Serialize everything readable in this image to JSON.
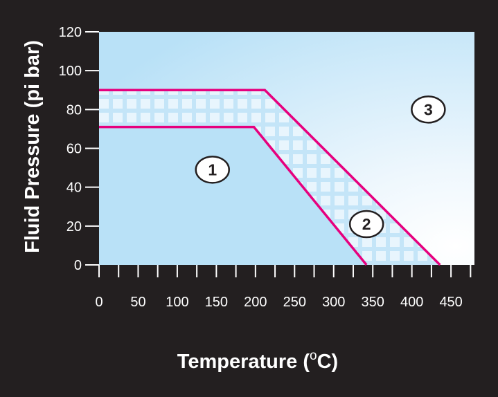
{
  "chart_data": {
    "type": "area",
    "title": "",
    "xlabel_main": "Temperature (",
    "xlabel_super": "o",
    "xlabel_end": "C)",
    "ylabel": "Fluid Pressure (pi bar)",
    "xlim": [
      0,
      480
    ],
    "ylim": [
      0,
      120
    ],
    "x_ticks": [
      0,
      50,
      100,
      150,
      200,
      250,
      300,
      350,
      400,
      450
    ],
    "x_minor_step": 25,
    "y_ticks": [
      0,
      20,
      40,
      60,
      80,
      100,
      120
    ],
    "series": [
      {
        "x": [
          0,
          198,
          342
        ],
        "y": [
          71,
          71,
          0
        ]
      },
      {
        "x": [
          0,
          212,
          436
        ],
        "y": [
          90,
          90,
          0
        ]
      }
    ],
    "regions": [
      {
        "label": "1",
        "x": 145,
        "y": 49
      },
      {
        "label": "2",
        "x": 342,
        "y": 21
      },
      {
        "label": "3",
        "x": 421,
        "y": 80
      }
    ],
    "colors": {
      "background": "#231f20",
      "region1_fill": "#b9e1f7",
      "boundary_line": "#e6007e",
      "grid_pattern": "#ffffff",
      "plot_gradient_start": "#b9e1f7",
      "plot_gradient_end": "#ffffff"
    }
  }
}
